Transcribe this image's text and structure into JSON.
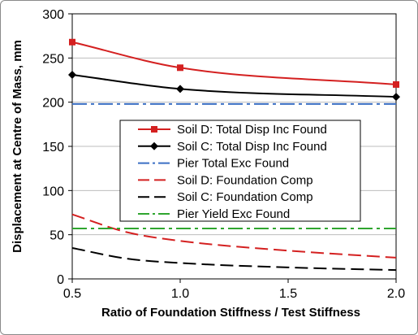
{
  "chart_data": {
    "type": "line",
    "title": "",
    "xlabel": "Ratio of Foundation Stiffness / Test Stiffness",
    "ylabel": "Displacement at Centre of Mass, mm",
    "xlim": [
      0.5,
      2.0
    ],
    "ylim": [
      0,
      300
    ],
    "x_ticks": [
      "0.5",
      "1.0",
      "1.5",
      "2.0"
    ],
    "y_ticks": [
      "0",
      "50",
      "100",
      "150",
      "200",
      "250",
      "300"
    ],
    "x_tick_values": [
      0.5,
      1.0,
      1.5,
      2.0
    ],
    "y_tick_values": [
      0,
      50,
      100,
      150,
      200,
      250,
      300
    ],
    "grid": "horizontal",
    "legend_position": "center-right",
    "series": [
      {
        "name": "Soil D: Total Disp Inc Found",
        "color": "#d42020",
        "dash": "solid",
        "marker": "square",
        "x": [
          0.5,
          1.0,
          2.0
        ],
        "y": [
          268,
          239,
          220
        ],
        "curve": "smooth"
      },
      {
        "name": "Soil C: Total Disp Inc Found",
        "color": "#000000",
        "dash": "solid",
        "marker": "diamond",
        "x": [
          0.5,
          1.0,
          2.0
        ],
        "y": [
          231,
          215,
          206
        ],
        "curve": "smooth"
      },
      {
        "name": "Pier Total Exc Found",
        "color": "#3a6fc4",
        "dash": "dashdot",
        "marker": "none",
        "x": [
          0.5,
          2.0
        ],
        "y": [
          198,
          198
        ],
        "curve": "straight"
      },
      {
        "name": "Soil D: Foundation Comp",
        "color": "#d42020",
        "dash": "dashed",
        "marker": "none",
        "x": [
          0.5,
          0.75,
          1.0,
          1.5,
          2.0
        ],
        "y": [
          73,
          53,
          43,
          32,
          24
        ],
        "curve": "smooth"
      },
      {
        "name": "Soil C: Foundation Comp",
        "color": "#000000",
        "dash": "dashed",
        "marker": "none",
        "x": [
          0.5,
          0.75,
          1.0,
          1.5,
          2.0
        ],
        "y": [
          35,
          23,
          18,
          13,
          10
        ],
        "curve": "smooth"
      },
      {
        "name": "Pier Yield Exc Found",
        "color": "#2fa62f",
        "dash": "dashdot",
        "marker": "none",
        "x": [
          0.5,
          2.0
        ],
        "y": [
          57,
          57
        ],
        "curve": "straight"
      }
    ]
  }
}
